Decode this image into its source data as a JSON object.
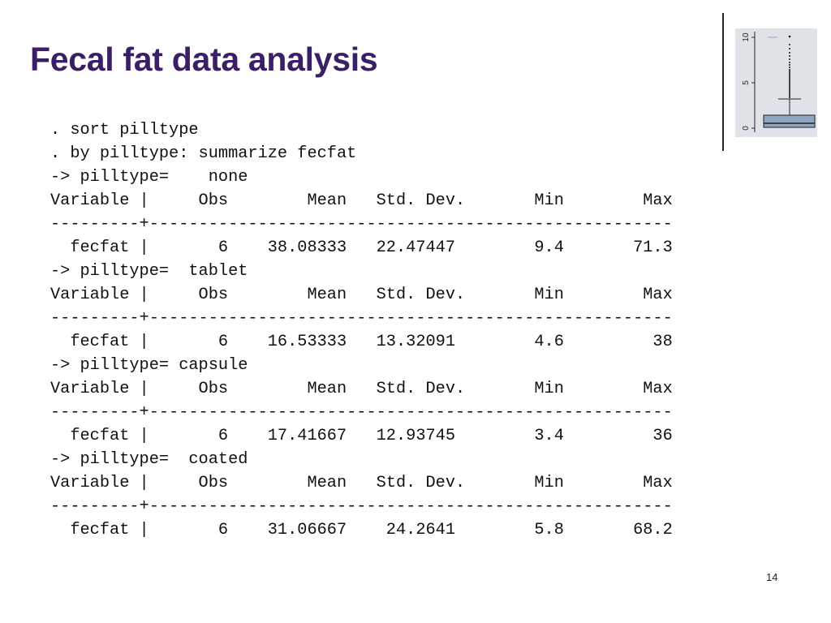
{
  "title": "Fecal fat data analysis",
  "page_number": "14",
  "boxplot": {
    "axis_ticks": [
      "0",
      "5",
      "10"
    ]
  },
  "output": [
    {
      "kind": "command",
      "text": ". sort pilltype"
    },
    {
      "kind": "command",
      "text": ". by pilltype: summarize fecfat"
    },
    {
      "kind": "group",
      "text": "-> pilltype=    none"
    },
    {
      "kind": "header",
      "text": "Variable |     Obs        Mean   Std. Dev.       Min        Max"
    },
    {
      "kind": "rule",
      "text": "---------+-----------------------------------------------------"
    },
    {
      "kind": "row",
      "text": "  fecfat |       6    38.08333   22.47447        9.4       71.3"
    },
    {
      "kind": "group",
      "text": "-> pilltype=  tablet"
    },
    {
      "kind": "header",
      "text": "Variable |     Obs        Mean   Std. Dev.       Min        Max"
    },
    {
      "kind": "rule",
      "text": "---------+-----------------------------------------------------"
    },
    {
      "kind": "row",
      "text": "  fecfat |       6    16.53333   13.32091        4.6         38"
    },
    {
      "kind": "group",
      "text": "-> pilltype= capsule"
    },
    {
      "kind": "header",
      "text": "Variable |     Obs        Mean   Std. Dev.       Min        Max"
    },
    {
      "kind": "rule",
      "text": "---------+-----------------------------------------------------"
    },
    {
      "kind": "row",
      "text": "  fecfat |       6    17.41667   12.93745        3.4         36"
    },
    {
      "kind": "group",
      "text": "-> pilltype=  coated"
    },
    {
      "kind": "header",
      "text": "Variable |     Obs        Mean   Std. Dev.       Min        Max"
    },
    {
      "kind": "rule",
      "text": "---------+-----------------------------------------------------"
    },
    {
      "kind": "row",
      "text": "  fecfat |       6    31.06667    24.2641        5.8       68.2"
    }
  ]
}
